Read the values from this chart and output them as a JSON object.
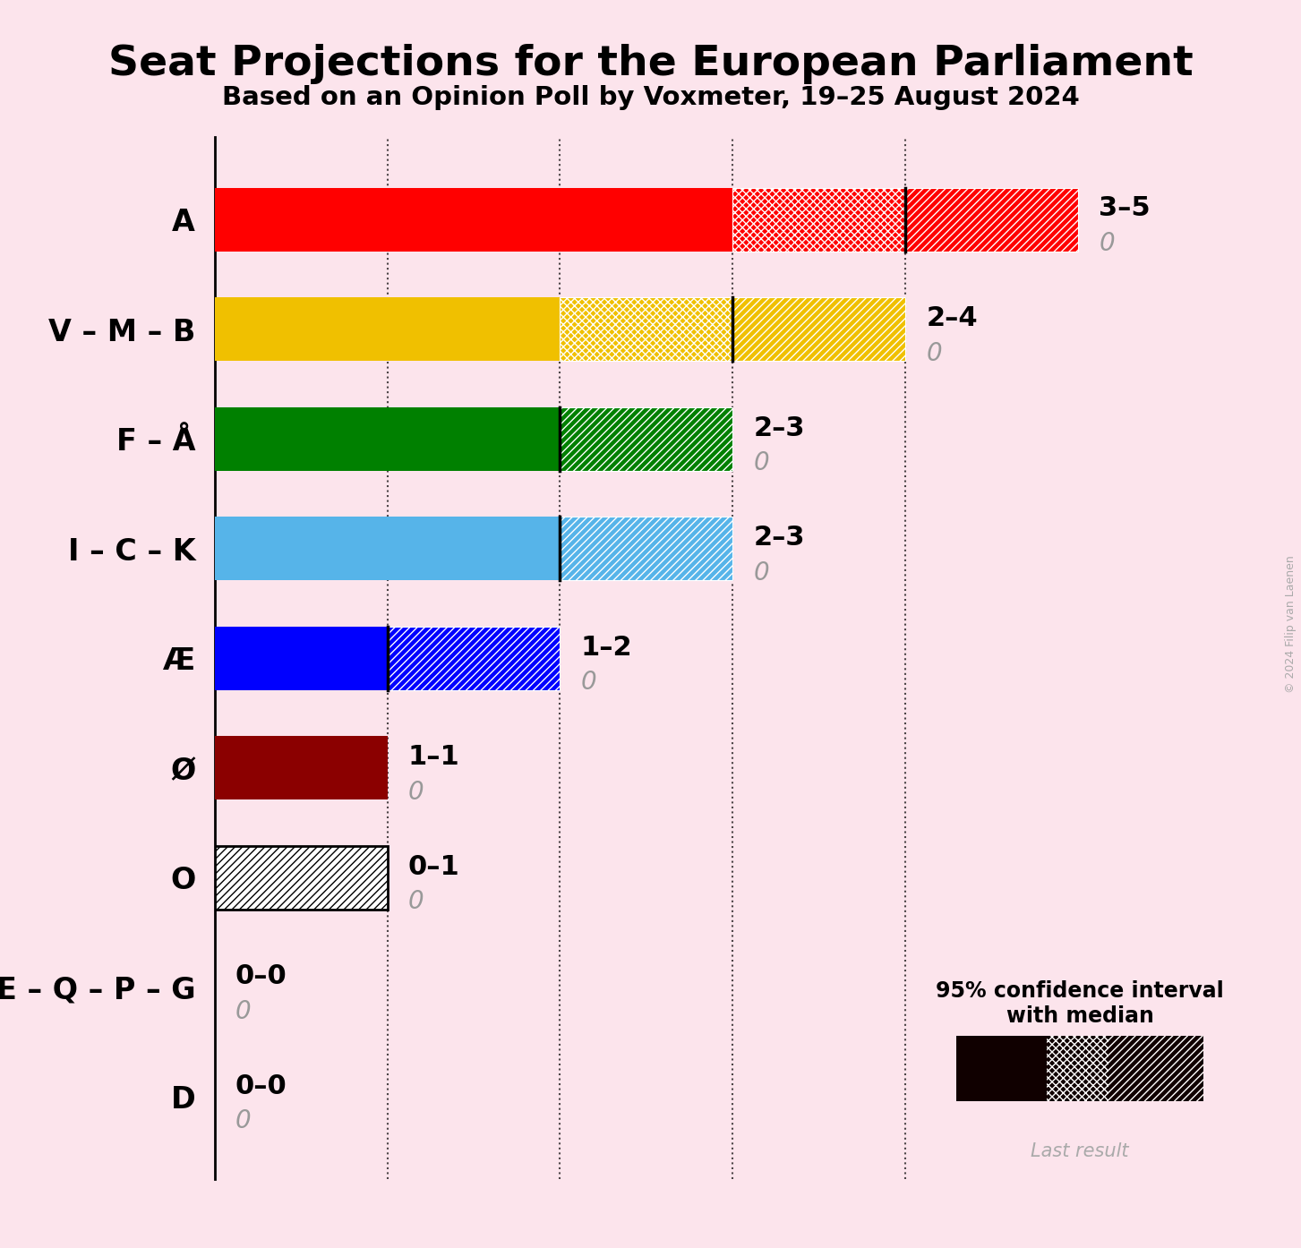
{
  "title": "Seat Projections for the European Parliament",
  "subtitle": "Based on an Opinion Poll by Voxmeter, 19–25 August 2024",
  "copyright": "© 2024 Filip van Laenen",
  "background_color": "#fce4ec",
  "parties": [
    "A",
    "V – M – B",
    "F – Å",
    "I – C – K",
    "Æ",
    "Ø",
    "O",
    "E – Q – P – G",
    "D"
  ],
  "min_seats": [
    3,
    2,
    2,
    2,
    1,
    1,
    0,
    0,
    0
  ],
  "median_seats": [
    4,
    3,
    2,
    2,
    1,
    1,
    0,
    0,
    0
  ],
  "max_seats": [
    5,
    4,
    3,
    3,
    2,
    1,
    1,
    0,
    0
  ],
  "last_result": [
    0,
    0,
    0,
    0,
    0,
    0,
    0,
    0,
    0
  ],
  "labels": [
    "3–5",
    "2–4",
    "2–3",
    "2–3",
    "1–2",
    "1–1",
    "0–1",
    "0–0",
    "0–0"
  ],
  "colors": [
    "#ff0000",
    "#f0c000",
    "#008000",
    "#56b4e9",
    "#0000ff",
    "#8b0000",
    "#111111",
    "#ffffff",
    "#ffffff"
  ],
  "o_party_index": 6,
  "xlim_max": 5.5,
  "dotted_ticks": [
    1,
    2,
    3,
    4
  ],
  "bar_height": 0.58,
  "title_fontsize": 34,
  "subtitle_fontsize": 21,
  "label_fontsize": 22,
  "last_fontsize": 20,
  "ytick_fontsize": 24,
  "legend_label": "95% confidence interval\nwith median",
  "last_result_label": "Last result"
}
